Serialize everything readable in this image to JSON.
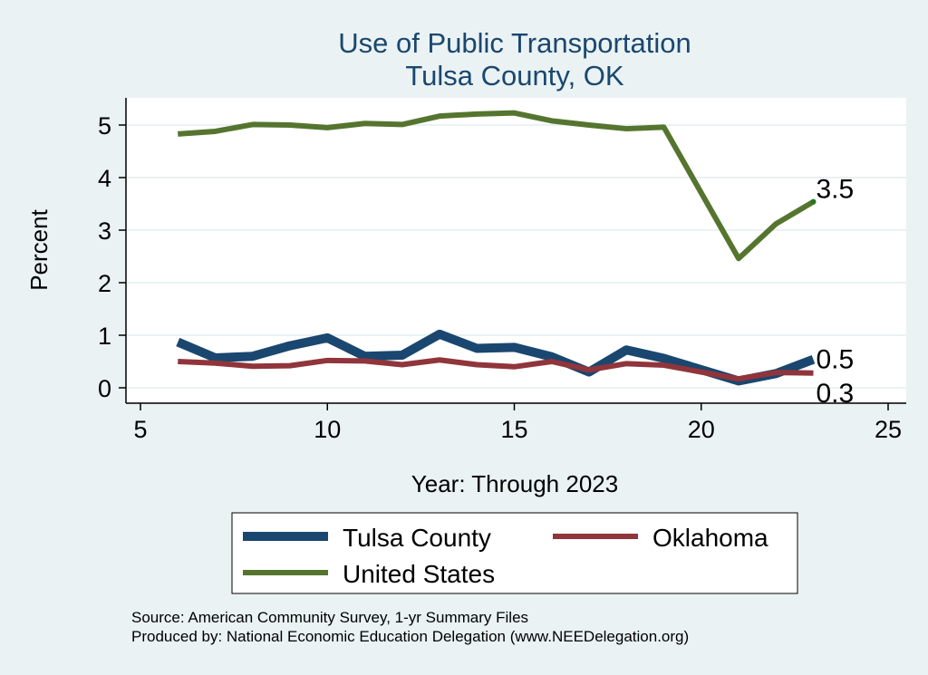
{
  "chart_data": {
    "type": "line",
    "title": "Use of Public Transportation",
    "subtitle": "Tulsa County, OK",
    "xlabel": "Year: Through 2023",
    "ylabel": "Percent",
    "xlim": [
      5,
      25
    ],
    "ylim": [
      0,
      5.5
    ],
    "xticks": [
      5,
      10,
      15,
      20,
      25
    ],
    "yticks": [
      0,
      1,
      2,
      3,
      4,
      5
    ],
    "grid": true,
    "legend_position": "bottom",
    "series": [
      {
        "name": "Tulsa County",
        "color": "#1a476f",
        "x": [
          6,
          7,
          8,
          9,
          10,
          11,
          12,
          13,
          14,
          15,
          16,
          17,
          18,
          19,
          21,
          22,
          23
        ],
        "values": [
          0.87,
          0.57,
          0.6,
          0.8,
          0.95,
          0.6,
          0.62,
          1.02,
          0.75,
          0.77,
          0.59,
          0.3,
          0.72,
          0.56,
          0.13,
          0.27,
          0.54
        ],
        "end_label": "0.5"
      },
      {
        "name": "Oklahoma",
        "color": "#90353b",
        "x": [
          6,
          7,
          8,
          9,
          10,
          11,
          12,
          13,
          14,
          15,
          16,
          17,
          18,
          19,
          21,
          22,
          23
        ],
        "values": [
          0.5,
          0.47,
          0.41,
          0.42,
          0.52,
          0.51,
          0.44,
          0.53,
          0.44,
          0.4,
          0.5,
          0.34,
          0.46,
          0.43,
          0.17,
          0.29,
          0.28
        ],
        "end_label": "0.3"
      },
      {
        "name": "United States",
        "color": "#55752f",
        "x": [
          6,
          7,
          8,
          9,
          10,
          11,
          12,
          13,
          14,
          15,
          16,
          17,
          18,
          19,
          21,
          22,
          23
        ],
        "values": [
          4.83,
          4.88,
          5.01,
          5.0,
          4.95,
          5.03,
          5.01,
          5.17,
          5.21,
          5.23,
          5.08,
          5.0,
          4.93,
          4.96,
          2.46,
          3.12,
          3.54
        ],
        "end_label": "3.5"
      }
    ],
    "notes": [
      "Source: American Community Survey, 1-yr Summary Files",
      "Produced by: National Economic Education Delegation (www.NEEDelegation.org)"
    ]
  }
}
